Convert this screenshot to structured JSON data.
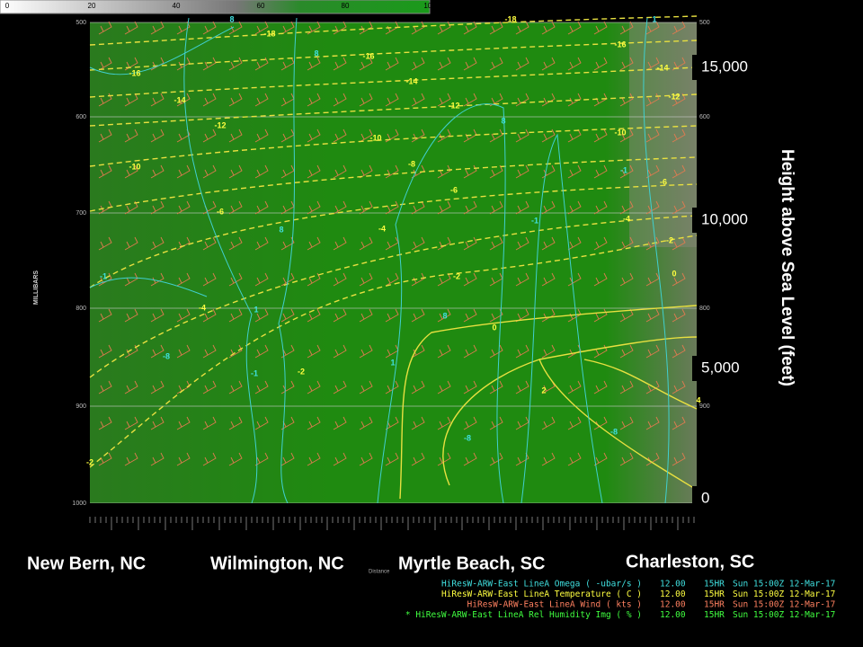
{
  "colorbar": {
    "ticks": [
      "0",
      "20",
      "40",
      "60",
      "80",
      "100"
    ]
  },
  "pressure_labels": [
    "500",
    "600",
    "700",
    "800",
    "900",
    "1000"
  ],
  "y_axis_label": "MILLIBARS",
  "height_labels": [
    "15,000",
    "10,000",
    "5,000",
    "0"
  ],
  "height_title": "Height above Sea Level (feet)",
  "cities": [
    "New Bern, NC",
    "Wilmington, NC",
    "Myrtle Beach, SC",
    "Charleston, SC"
  ],
  "distance_label": "Distance",
  "temperature_labels": [
    "-18",
    "-18",
    "-16",
    "-16",
    "-16",
    "-14",
    "-14",
    "-14",
    "-12",
    "-12",
    "-12",
    "-10",
    "-10",
    "-10",
    "-8",
    "-6",
    "-6",
    "-6",
    "-4",
    "-4",
    "-4",
    "-2",
    "-2",
    "-2",
    "-2",
    "0",
    "0",
    "2",
    "4"
  ],
  "omega_labels": [
    "8",
    "8",
    "8",
    "8",
    "8",
    "-1",
    "-1",
    "-1",
    "-1",
    "-8",
    "-8",
    "-8",
    "1",
    "1",
    "1"
  ],
  "legend": [
    {
      "name": "HiResW-ARW-East LineA Omega ( -ubar/s )",
      "value": "12.00",
      "forecast": "15HR",
      "time": "Sun 15:00Z 12-Mar-17"
    },
    {
      "name": "HiResW-ARW-East LineA Temperature ( C )",
      "value": "12.00",
      "forecast": "15HR",
      "time": "Sun 15:00Z 12-Mar-17"
    },
    {
      "name": "HiResW-ARW-East LineA Wind ( kts )",
      "value": "12.00",
      "forecast": "15HR",
      "time": "Sun 15:00Z 12-Mar-17"
    },
    {
      "name": "* HiResW-ARW-East LineA Rel Humidity Img ( % )",
      "value": "12.00",
      "forecast": "15HR",
      "time": "Sun 15:00Z 12-Mar-17"
    }
  ]
}
